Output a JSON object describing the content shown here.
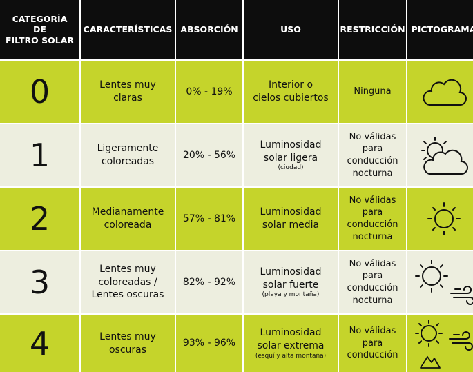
{
  "header": {
    "categoria": "CATEGORÍA\nDE\nFILTRO SOLAR",
    "caracteristicas": "CARACTERÍSTICAS",
    "absorcion": "ABSORCIÓN",
    "uso": "USO",
    "restriccion": "RESTRICCIÓN",
    "pictograma": "PICTOGRAMA"
  },
  "rows": [
    {
      "cat": "0",
      "car": "Lentes muy\nclaras",
      "abs": "0% - 19%",
      "uso": "Interior o\ncielos cubiertos",
      "uso_note": "",
      "res": "Ninguna",
      "icon": "cloud-icon"
    },
    {
      "cat": "1",
      "car": "Ligeramente\ncoloreadas",
      "abs": "20% - 56%",
      "uso": "Luminosidad\nsolar ligera",
      "uso_note": "(ciudad)",
      "res": "No válidas\npara\nconducción\nnocturna",
      "icon": "sun-behind-cloud-icon"
    },
    {
      "cat": "2",
      "car": "Medianamente\ncoloreada",
      "abs": "57% - 81%",
      "uso": "Luminosidad\nsolar media",
      "uso_note": "",
      "res": "No válidas\npara\nconducción\nnocturna",
      "icon": "sun-icon"
    },
    {
      "cat": "3",
      "car": "Lentes muy\ncoloreadas /\nLentes oscuras",
      "abs": "82% - 92%",
      "uso": "Luminosidad\nsolar fuerte",
      "uso_note": "(playa y montaña)",
      "res": "No válidas\npara\nconducción\nnocturna",
      "icon": "sun-and-wind-icon"
    },
    {
      "cat": "4",
      "car": "Lentes muy\noscuras",
      "abs": "93% - 96%",
      "uso": "Luminosidad\nsolar extrema",
      "uso_note": "(esquí y alta montaña)",
      "res": "No válidas\npara\nconducción",
      "icon": "sun-wind-mountain-icon"
    }
  ],
  "colors": {
    "header_bg": "#0d0d0d",
    "accent_row": "#c5d42b",
    "light_row": "#edeedf",
    "text": "#111111"
  }
}
